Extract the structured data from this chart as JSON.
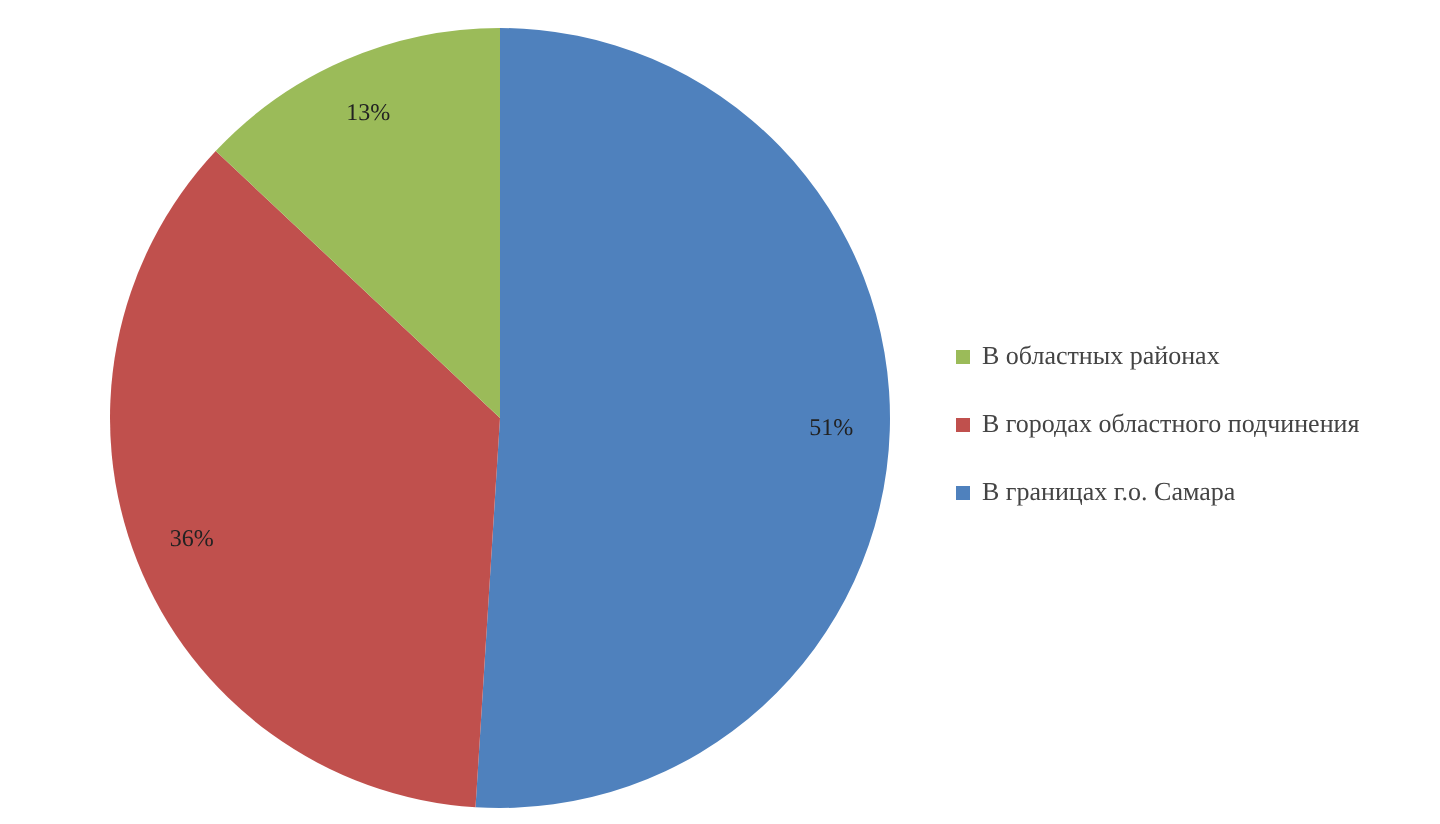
{
  "chart_data": {
    "type": "pie",
    "categories": [
      "В границах г.о. Самара",
      "В городах областного подчинения",
      "В областных районах"
    ],
    "values": [
      51,
      36,
      13
    ],
    "colors": [
      "#4f81bd",
      "#c0504d",
      "#9bbb59"
    ],
    "value_labels": [
      "51%",
      "36%",
      "13%"
    ],
    "legend": "right"
  }
}
